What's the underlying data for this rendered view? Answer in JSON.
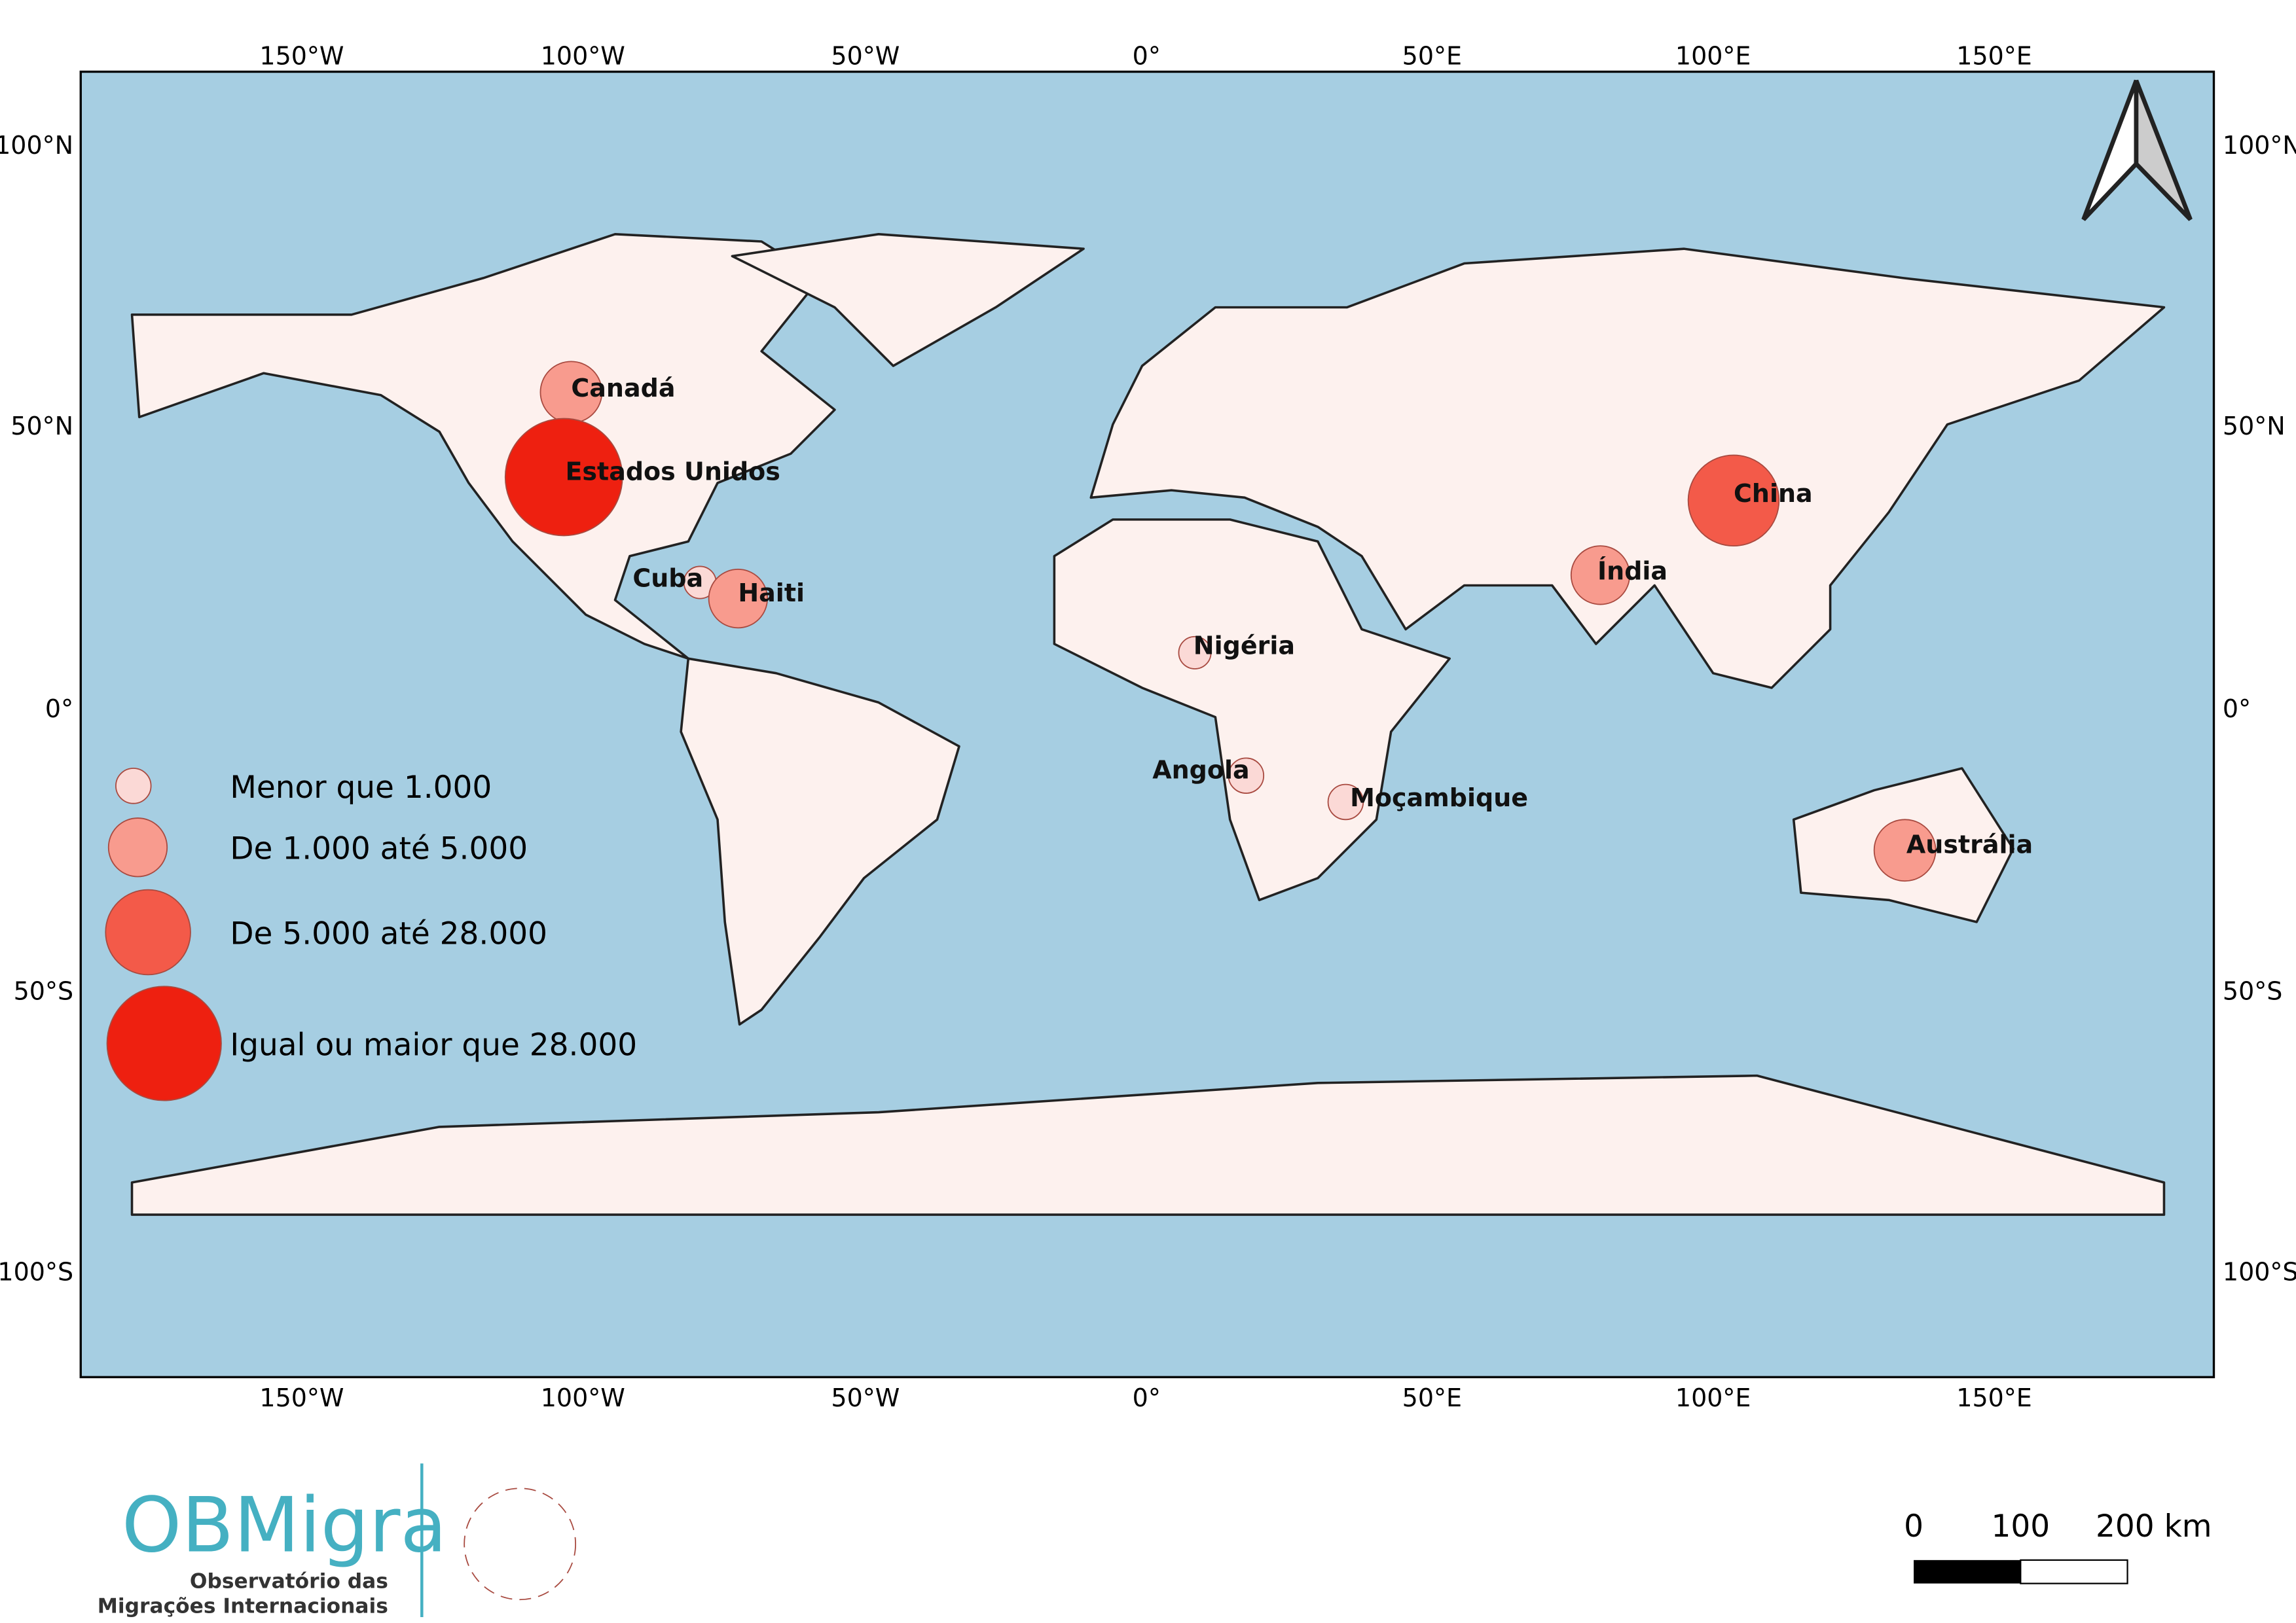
{
  "map": {
    "lon_ticks": [
      "150°W",
      "100°W",
      "50°W",
      "0°",
      "50°E",
      "100°E",
      "150°E"
    ],
    "lat_ticks": [
      "100°N",
      "50°N",
      "0°",
      "50°S",
      "100°S"
    ],
    "countries": [
      "Canadá",
      "Estados Unidos",
      "Cuba",
      "Haiti",
      "Nigéria",
      "Angola",
      "Moçambique",
      "China",
      "Índia",
      "Austrália"
    ],
    "legend": [
      "Menor que 1.000",
      "De 1.000 até 5.000",
      "De 5.000 até 28.000",
      "Igual ou maior que 28.000"
    ],
    "scale_bar": [
      "0",
      "100",
      "200 km"
    ]
  },
  "logo": {
    "name": "OBMigra",
    "line1": "Observatório das",
    "line2": "Migrações Internacionais"
  }
}
